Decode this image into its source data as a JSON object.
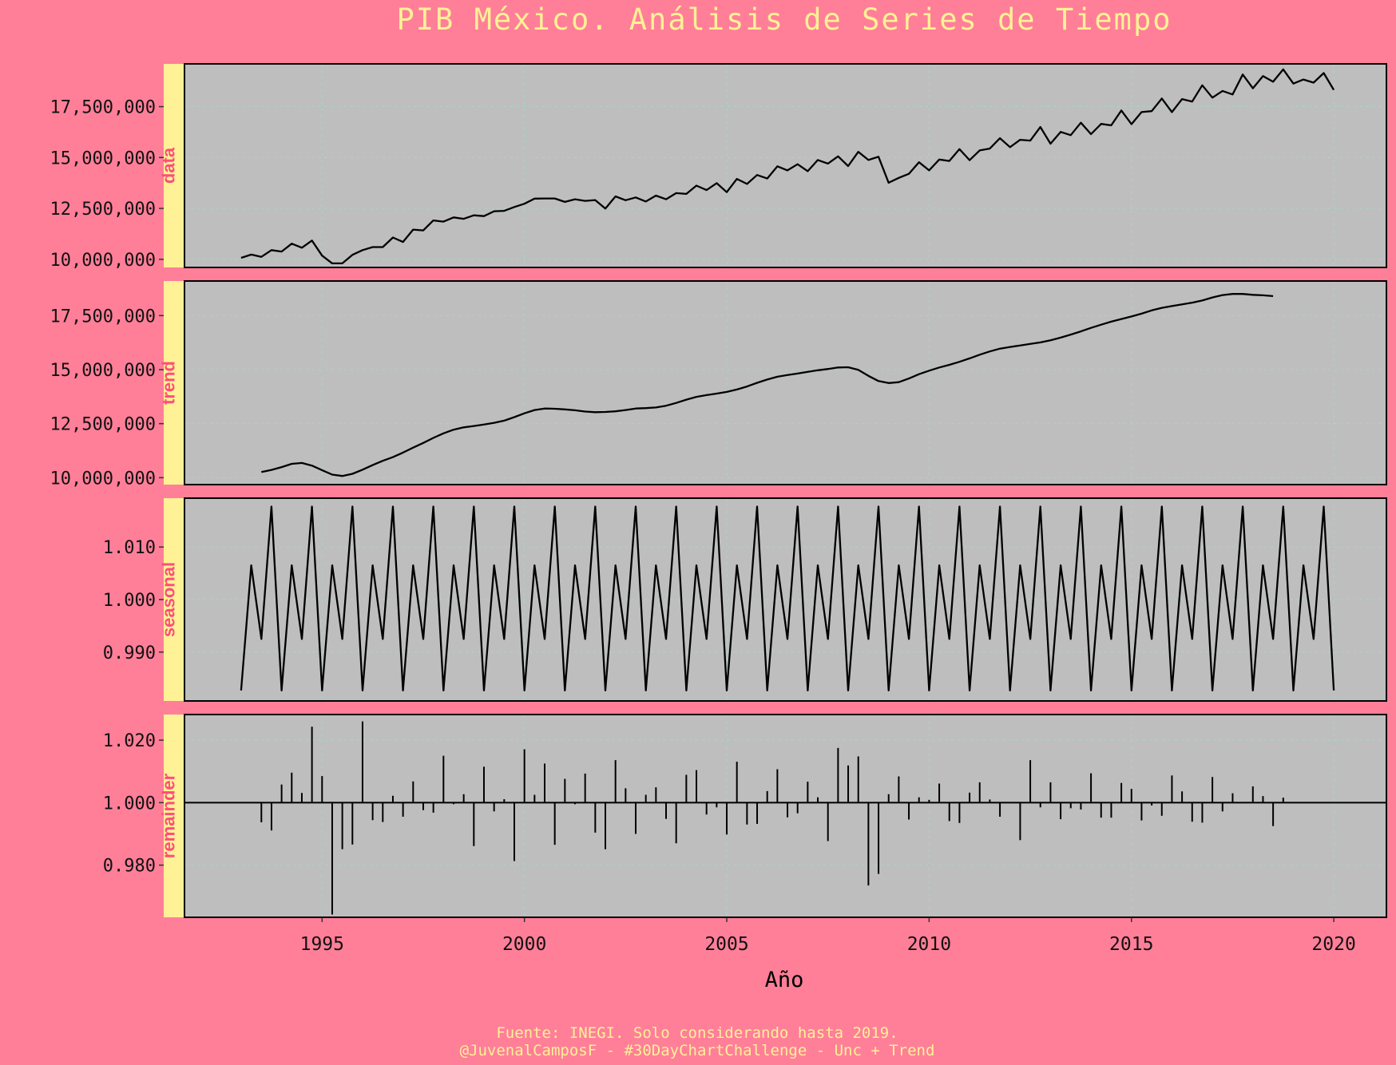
{
  "title": "PIB México. Análisis de Series de Tiempo",
  "xlabel": "Año",
  "caption_line1": "Fuente: INEGI. Solo considerando hasta 2019.",
  "caption_line2": "@JuvenalCamposF - #30DayChartChallenge - Unc + Trend",
  "colors": {
    "background": "#ff7f99",
    "panel": "#bebebe",
    "strip": "#fff196",
    "strip_text": "#ff4d7a",
    "title_text": "#fff196",
    "grid": "#a6d8c3",
    "line": "#000000"
  },
  "chart_data": {
    "type": "line",
    "x_ticks": [
      1995,
      2000,
      2005,
      2010,
      2015,
      2020
    ],
    "xlim": [
      1991.6,
      2021.3
    ],
    "panels": [
      {
        "name": "data",
        "geom": "line",
        "ylim": [
          9600000,
          19600000
        ],
        "y_ticks": [
          10000000,
          12500000,
          15000000,
          17500000
        ],
        "y_tick_labels": [
          "10,000,000",
          "12,500,000",
          "15,000,000",
          "17,500,000"
        ],
        "x_start": 1993.0,
        "x_step": 0.25,
        "values": [
          10070000,
          10230000,
          10120000,
          10450000,
          10380000,
          10770000,
          10570000,
          10920000,
          10180000,
          9800000,
          9800000,
          10220000,
          10450000,
          10600000,
          10600000,
          11070000,
          10850000,
          11460000,
          11420000,
          11910000,
          11850000,
          12060000,
          11990000,
          12160000,
          12120000,
          12360000,
          12380000,
          12570000,
          12730000,
          12980000,
          12990000,
          12990000,
          12820000,
          12950000,
          12870000,
          12910000,
          12490000,
          13090000,
          12900000,
          13040000,
          12840000,
          13130000,
          12950000,
          13250000,
          13210000,
          13620000,
          13400000,
          13740000,
          13300000,
          13950000,
          13700000,
          14140000,
          13970000,
          14570000,
          14370000,
          14670000,
          14330000,
          14880000,
          14700000,
          15060000,
          14580000,
          15280000,
          14880000,
          15040000,
          13760000,
          14000000,
          14200000,
          14770000,
          14370000,
          14900000,
          14830000,
          15410000,
          14870000,
          15350000,
          15440000,
          15950000,
          15510000,
          15870000,
          15830000,
          16500000,
          15680000,
          16260000,
          16100000,
          16710000,
          16150000,
          16650000,
          16580000,
          17310000,
          16640000,
          17230000,
          17280000,
          17900000,
          17230000,
          17870000,
          17750000,
          18550000,
          17940000,
          18270000,
          18100000,
          19080000,
          18400000,
          19000000,
          18720000,
          19330000,
          18630000,
          18830000,
          18680000,
          19150000,
          18320000
        ]
      },
      {
        "name": "trend",
        "geom": "line",
        "ylim": [
          9680000,
          19100000
        ],
        "y_ticks": [
          10000000,
          12500000,
          15000000,
          17500000
        ],
        "y_tick_labels": [
          "10,000,000",
          "12,500,000",
          "15,000,000",
          "17,500,000"
        ],
        "x_start": 1993.5,
        "x_step": 0.25,
        "values": [
          10260000,
          10360000,
          10490000,
          10640000,
          10680000,
          10560000,
          10350000,
          10140000,
          10080000,
          10180000,
          10370000,
          10580000,
          10780000,
          10950000,
          11160000,
          11390000,
          11610000,
          11840000,
          12050000,
          12220000,
          12330000,
          12390000,
          12460000,
          12540000,
          12640000,
          12800000,
          12980000,
          13130000,
          13200000,
          13190000,
          13160000,
          13120000,
          13060000,
          13030000,
          13040000,
          13070000,
          13130000,
          13200000,
          13220000,
          13250000,
          13330000,
          13460000,
          13610000,
          13740000,
          13820000,
          13890000,
          13970000,
          14080000,
          14220000,
          14390000,
          14540000,
          14670000,
          14750000,
          14820000,
          14900000,
          14970000,
          15030000,
          15100000,
          15110000,
          14990000,
          14710000,
          14470000,
          14380000,
          14420000,
          14590000,
          14790000,
          14950000,
          15100000,
          15220000,
          15360000,
          15520000,
          15690000,
          15840000,
          15970000,
          16050000,
          16120000,
          16190000,
          16260000,
          16360000,
          16480000,
          16620000,
          16770000,
          16930000,
          17080000,
          17220000,
          17340000,
          17460000,
          17590000,
          17740000,
          17860000,
          17940000,
          18020000,
          18100000,
          18200000,
          18340000,
          18450000,
          18500000,
          18500000,
          18460000,
          18440000,
          18400000
        ]
      },
      {
        "name": "seasonal",
        "geom": "line",
        "ylim": [
          0.9807,
          1.0193
        ],
        "y_ticks": [
          0.99,
          1.0,
          1.01
        ],
        "y_tick_labels": [
          "0.990",
          "1.000",
          "1.010"
        ],
        "x_start": 1993.0,
        "x_step": 0.25,
        "pattern": [
          0.9827,
          1.0065,
          0.9925,
          1.0177
        ],
        "values": []
      },
      {
        "name": "remainder",
        "geom": "bar",
        "ylim": [
          0.9633,
          1.0282
        ],
        "y_ticks": [
          0.98,
          1.0,
          1.02
        ],
        "y_tick_labels": [
          "0.980",
          "1.000",
          "1.020"
        ],
        "x_start": 1993.5,
        "x_step": 0.25,
        "values": [
          0.9937,
          0.9911,
          1.0058,
          1.0096,
          1.0031,
          1.0243,
          1.0085,
          0.9642,
          0.9851,
          0.9866,
          1.026,
          0.9944,
          0.9938,
          1.0022,
          0.9955,
          1.0068,
          0.9976,
          0.9968,
          1.015,
          0.9995,
          1.0027,
          0.9861,
          1.0115,
          0.9972,
          1.0011,
          0.9813,
          1.0171,
          1.0025,
          1.0125,
          0.9865,
          1.0076,
          0.9995,
          1.0093,
          0.9904,
          0.9851,
          1.0136,
          1.0046,
          0.99,
          1.0025,
          1.0049,
          0.9948,
          0.987,
          1.0089,
          1.0104,
          0.9962,
          0.9985,
          0.9898,
          1.0131,
          0.993,
          0.9932,
          1.0037,
          1.0107,
          0.9953,
          0.9966,
          1.0067,
          1.0017,
          0.9877,
          1.0175,
          1.0119,
          1.0148,
          0.9735,
          0.9772,
          1.0027,
          1.0084,
          0.9946,
          1.0017,
          1.0009,
          1.0061,
          0.9941,
          0.9935,
          1.0032,
          1.0065,
          1.001,
          0.9955,
          1.0,
          0.988,
          1.0136,
          0.9985,
          1.0065,
          0.9947,
          0.9982,
          0.9978,
          1.0094,
          0.9952,
          0.9952,
          1.0063,
          1.0044,
          0.9943,
          0.9991,
          0.9958,
          1.0087,
          1.0036,
          0.9939,
          0.9936,
          1.0082,
          0.9972,
          1.003,
          1.0,
          1.0052,
          1.0021,
          0.9925,
          1.0016
        ]
      }
    ]
  }
}
